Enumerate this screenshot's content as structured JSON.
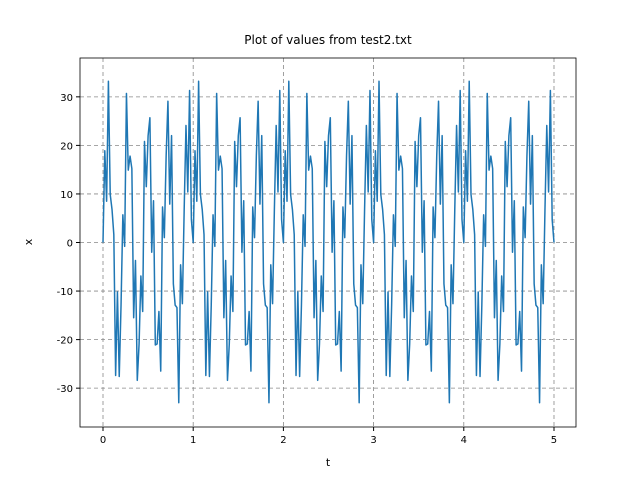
{
  "chart_data": {
    "type": "line",
    "title": "Plot of values from test2.txt",
    "x_label": "t",
    "y_label": "x",
    "x": [
      0,
      0.02,
      0.04,
      0.06,
      0.08,
      0.1,
      0.12,
      0.14,
      0.16,
      0.18,
      0.2,
      0.22,
      0.24,
      0.26,
      0.28,
      0.3,
      0.32,
      0.34,
      0.36,
      0.38,
      0.4,
      0.42,
      0.44,
      0.46,
      0.48,
      0.5,
      0.52,
      0.54,
      0.56,
      0.58,
      0.6,
      0.62,
      0.64,
      0.66,
      0.68,
      0.7,
      0.72,
      0.74,
      0.76,
      0.78,
      0.8,
      0.82,
      0.84,
      0.86,
      0.88,
      0.9,
      0.92,
      0.94,
      0.96,
      0.98,
      1,
      1.02,
      1.04,
      1.06,
      1.08,
      1.1,
      1.12,
      1.14,
      1.16,
      1.18,
      1.2,
      1.22,
      1.24,
      1.26,
      1.28,
      1.3,
      1.32,
      1.34,
      1.36,
      1.38,
      1.4,
      1.42,
      1.44,
      1.46,
      1.48,
      1.5,
      1.52,
      1.54,
      1.56,
      1.58,
      1.6,
      1.62,
      1.64,
      1.66,
      1.68,
      1.7,
      1.72,
      1.74,
      1.76,
      1.78,
      1.8,
      1.82,
      1.84,
      1.86,
      1.88,
      1.9,
      1.92,
      1.94,
      1.96,
      1.98,
      2,
      2.02,
      2.04,
      2.06,
      2.08,
      2.1,
      2.12,
      2.14,
      2.16,
      2.18,
      2.2,
      2.22,
      2.24,
      2.26,
      2.28,
      2.3,
      2.32,
      2.34,
      2.36,
      2.38,
      2.4,
      2.42,
      2.44,
      2.46,
      2.48,
      2.5,
      2.52,
      2.54,
      2.56,
      2.58,
      2.6,
      2.62,
      2.64,
      2.66,
      2.68,
      2.7,
      2.72,
      2.74,
      2.76,
      2.78,
      2.8,
      2.82,
      2.84,
      2.86,
      2.88,
      2.9,
      2.92,
      2.94,
      2.96,
      2.98,
      3,
      3.02,
      3.04,
      3.06,
      3.08,
      3.1,
      3.12,
      3.14,
      3.16,
      3.18,
      3.2,
      3.22,
      3.24,
      3.26,
      3.28,
      3.3,
      3.32,
      3.34,
      3.36,
      3.38,
      3.4,
      3.42,
      3.44,
      3.46,
      3.48,
      3.5,
      3.52,
      3.54,
      3.56,
      3.58,
      3.6,
      3.62,
      3.64,
      3.66,
      3.68,
      3.7,
      3.72,
      3.74,
      3.76,
      3.78,
      3.8,
      3.82,
      3.84,
      3.86,
      3.88,
      3.9,
      3.92,
      3.94,
      3.96,
      3.98,
      4,
      4.02,
      4.04,
      4.06,
      4.08,
      4.1,
      4.12,
      4.14,
      4.16,
      4.18,
      4.2,
      4.22,
      4.24,
      4.26,
      4.28,
      4.3,
      4.32,
      4.34,
      4.36,
      4.38,
      4.4,
      4.42,
      4.44,
      4.46,
      4.48,
      4.5,
      4.52,
      4.54,
      4.56,
      4.58,
      4.6,
      4.62,
      4.64,
      4.66,
      4.68,
      4.7,
      4.72,
      4.74,
      4.76,
      4.78,
      4.8,
      4.82,
      4.84,
      4.86,
      4.88,
      4.9,
      4.92,
      4.94,
      4.96,
      4.98,
      5
    ],
    "series": [
      {
        "color": "#1f77b4",
        "values": [
          0,
          18.9,
          8.5,
          33.2,
          9.9,
          6.8,
          1.6,
          -27.4,
          -10.2,
          -27.6,
          -12.9,
          5.7,
          -0.8,
          30.7,
          14.9,
          17.8,
          15.2,
          -15.5,
          -3.7,
          -28.4,
          -20.9,
          -6.9,
          -14.2,
          20.8,
          11.5,
          22.0,
          25.7,
          -2.0,
          8.6,
          -21.1,
          -20.9,
          -14.2,
          -26.5,
          7.3,
          1.0,
          17.8,
          29.1,
          7.9,
          22.0,
          -8.5,
          -12.9,
          -13.4,
          -33.0,
          -4.6,
          -12.6,
          6.8,
          24.1,
          10.4,
          31.3,
          4.7,
          0,
          18.9,
          8.5,
          33.2,
          9.9,
          6.8,
          1.6,
          -27.4,
          -10.2,
          -27.6,
          -12.9,
          5.7,
          -0.8,
          30.7,
          14.9,
          17.8,
          15.2,
          -15.5,
          -3.7,
          -28.4,
          -20.9,
          -6.9,
          -14.2,
          20.8,
          11.5,
          22.0,
          25.7,
          -2.0,
          8.6,
          -21.1,
          -20.9,
          -14.2,
          -26.5,
          7.3,
          1.0,
          17.8,
          29.1,
          7.9,
          22.0,
          -8.5,
          -12.9,
          -13.4,
          -33.0,
          -4.6,
          -12.6,
          6.8,
          24.1,
          10.4,
          31.3,
          4.7,
          0,
          18.9,
          8.5,
          33.2,
          9.9,
          6.8,
          1.6,
          -27.4,
          -10.2,
          -27.6,
          -12.9,
          5.7,
          -0.8,
          30.7,
          14.9,
          17.8,
          15.2,
          -15.5,
          -3.7,
          -28.4,
          -20.9,
          -6.9,
          -14.2,
          20.8,
          11.5,
          22.0,
          25.7,
          -2.0,
          8.6,
          -21.1,
          -20.9,
          -14.2,
          -26.5,
          7.3,
          1.0,
          17.8,
          29.1,
          7.9,
          22.0,
          -8.5,
          -12.9,
          -13.4,
          -33.0,
          -4.6,
          -12.6,
          6.8,
          24.1,
          10.4,
          31.3,
          4.7,
          0,
          18.9,
          8.5,
          33.2,
          9.9,
          6.8,
          1.6,
          -27.4,
          -10.2,
          -27.6,
          -12.9,
          5.7,
          -0.8,
          30.7,
          14.9,
          17.8,
          15.2,
          -15.5,
          -3.7,
          -28.4,
          -20.9,
          -6.9,
          -14.2,
          20.8,
          11.5,
          22.0,
          25.7,
          -2.0,
          8.6,
          -21.1,
          -20.9,
          -14.2,
          -26.5,
          7.3,
          1.0,
          17.8,
          29.1,
          7.9,
          22.0,
          -8.5,
          -12.9,
          -13.4,
          -33.0,
          -4.6,
          -12.6,
          6.8,
          24.1,
          10.4,
          31.3,
          4.7,
          0,
          18.9,
          8.5,
          33.2,
          9.9,
          6.8,
          1.6,
          -27.4,
          -10.2,
          -27.6,
          -12.9,
          5.7,
          -0.8,
          30.7,
          14.9,
          17.8,
          15.2,
          -15.5,
          -3.7,
          -28.4,
          -20.9,
          -6.9,
          -14.2,
          20.8,
          11.5,
          22.0,
          25.7,
          -2.0,
          8.6,
          -21.1,
          -20.9,
          -14.2,
          -26.5,
          7.3,
          1.0,
          17.8,
          29.1,
          7.9,
          22.0,
          -8.5,
          -12.9,
          -13.4,
          -33.0,
          -4.6,
          -12.6,
          6.8,
          24.1,
          10.4,
          31.3,
          4.7,
          0
        ]
      }
    ],
    "xlim": [
      -0.255,
      5.244
    ],
    "ylim": [
      -38,
      38
    ],
    "xticks": [
      0,
      1,
      2,
      3,
      4,
      5
    ],
    "yticks": [
      -30,
      -20,
      -10,
      0,
      10,
      20,
      30
    ],
    "grid": true
  }
}
